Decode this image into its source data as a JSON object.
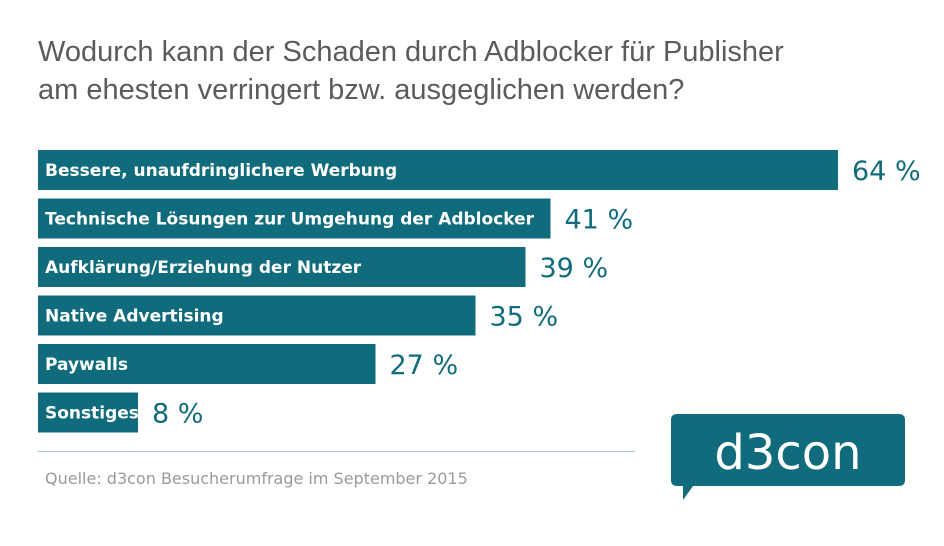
{
  "title_lines": [
    "Wodurch kann der Schaden durch Adblocker für Publisher",
    "am ehesten verringert bzw. ausgeglichen werden?"
  ],
  "chart_data": {
    "type": "bar",
    "orientation": "horizontal",
    "categories": [
      "Bessere, unaufdringlichere Werbung",
      "Technische Lösungen zur Umgehung der Adblocker",
      "Aufklärung/Erziehung der Nutzer",
      "Native Advertising",
      "Paywalls",
      "Sonstiges"
    ],
    "values": [
      64,
      41,
      39,
      35,
      27,
      8
    ],
    "value_labels": [
      "64 %",
      "41 %",
      "39 %",
      "35 %",
      "27 %",
      "8 %"
    ],
    "unit": "%",
    "xlim": [
      0,
      100
    ],
    "grid": false,
    "legend": "none",
    "colors": {
      "bar": "#106c7c",
      "bar_text": "#ffffff",
      "value_text": "#106c7c"
    }
  },
  "source": "Quelle: d3con Besucherumfrage im September 2015",
  "logo": {
    "text": "d3con",
    "color": "#106c7c"
  }
}
